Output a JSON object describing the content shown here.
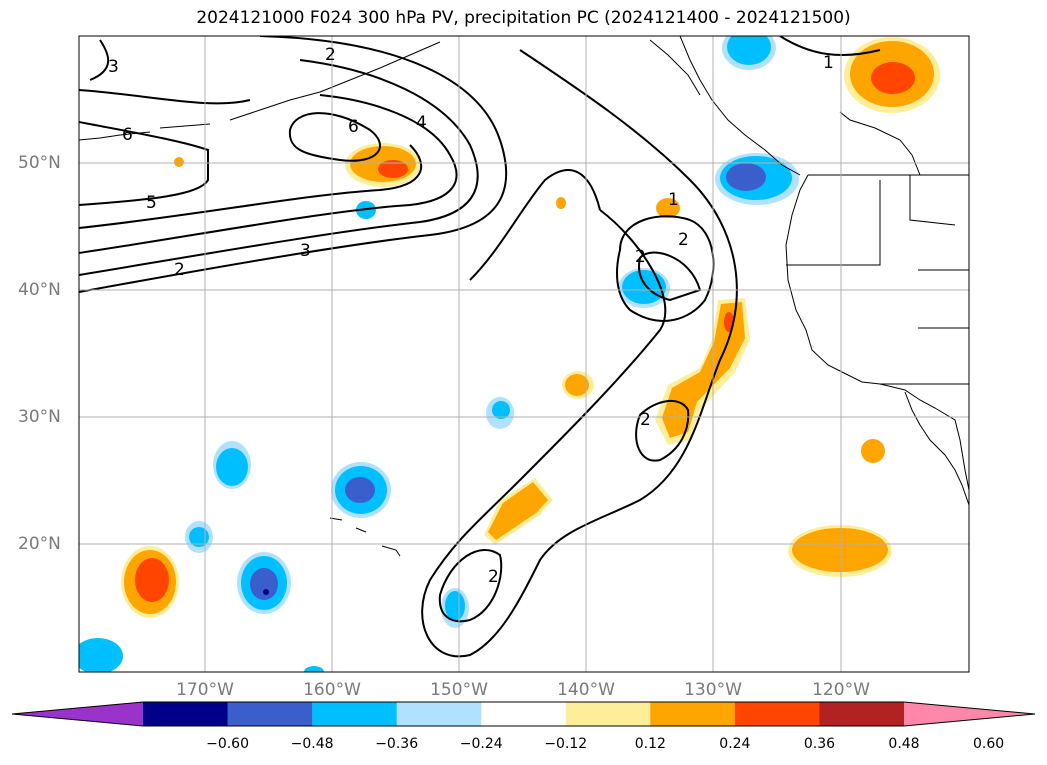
{
  "title": "2024121000 F024 300 hPa PV, precipitation PC (2024121400 - 2024121500)",
  "map": {
    "lon_ticks": [
      "170°W",
      "160°W",
      "150°W",
      "140°W",
      "130°W",
      "120°W"
    ],
    "lat_ticks": [
      "50°N",
      "40°N",
      "30°N",
      "20°N"
    ],
    "grid": true,
    "coastline_color": "#000000",
    "contour_color": "#000000"
  },
  "pv_contours": {
    "labels": [
      "3",
      "2",
      "6",
      "4",
      "6",
      "5",
      "3",
      "2",
      "1",
      "2",
      "2",
      "1",
      "2",
      "2"
    ]
  },
  "colorbar": {
    "tick_labels": [
      "−0.60",
      "−0.48",
      "−0.36",
      "−0.24",
      "−0.12",
      "0.12",
      "0.24",
      "0.36",
      "0.48",
      "0.60"
    ],
    "colors": [
      "#9933cc",
      "#00008b",
      "#3a5fcd",
      "#00bfff",
      "#b0e2ff",
      "#ffffff",
      "#ffee99",
      "#ffa500",
      "#ff4500",
      "#b22222",
      "#ff88aa"
    ],
    "extend": "both"
  }
}
